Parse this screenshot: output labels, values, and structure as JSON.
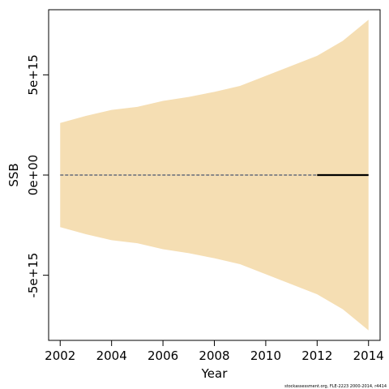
{
  "chart_data": {
    "type": "area",
    "title": "",
    "xlabel": "Year",
    "ylabel": "SSB",
    "xlim": [
      2001.55,
      2014.45
    ],
    "ylim": [
      -8250000000000000.0,
      8250000000000000.0
    ],
    "x_ticks": [
      2002,
      2004,
      2006,
      2008,
      2010,
      2012,
      2014
    ],
    "x_tick_labels": [
      "2002",
      "2004",
      "2006",
      "2008",
      "2010",
      "2012",
      "2014"
    ],
    "y_ticks": [
      -5000000000000000.0,
      0,
      5000000000000000.0
    ],
    "y_tick_labels": [
      "-5e+15",
      "0e+00",
      "5e+15"
    ],
    "grid": false,
    "band": {
      "color": "#F5DEB3",
      "x": [
        2002,
        2003,
        2004,
        2005,
        2006,
        2007,
        2008,
        2009,
        2010,
        2011,
        2012,
        2013,
        2014
      ],
      "upper": [
        2600000000000000.0,
        2950000000000000.0,
        3250000000000000.0,
        3400000000000000.0,
        3700000000000000.0,
        3900000000000000.0,
        4150000000000000.0,
        4450000000000000.0,
        4950000000000000.0,
        5450000000000000.0,
        5950000000000000.0,
        6700000000000000.0,
        7750000000000000.0
      ],
      "lower": [
        -2600000000000000.0,
        -2950000000000000.0,
        -3250000000000000.0,
        -3400000000000000.0,
        -3700000000000000.0,
        -3900000000000000.0,
        -4150000000000000.0,
        -4450000000000000.0,
        -4950000000000000.0,
        -5450000000000000.0,
        -5950000000000000.0,
        -6700000000000000.0,
        -7750000000000000.0
      ]
    },
    "series": [
      {
        "color": "#888888",
        "style": "dashed",
        "x": [
          2002,
          2003,
          2004,
          2005,
          2006,
          2007,
          2008,
          2009,
          2010,
          2011,
          2012
        ],
        "values": [
          0,
          0,
          0,
          0,
          0,
          0,
          0,
          0,
          0,
          0,
          0
        ]
      },
      {
        "color": "#000000",
        "style": "solid",
        "x": [
          2012,
          2013,
          2014
        ],
        "values": [
          0,
          0,
          0
        ]
      }
    ]
  },
  "footnote": "stockassessment.org, FLE-2223  2000-2014, r4414"
}
